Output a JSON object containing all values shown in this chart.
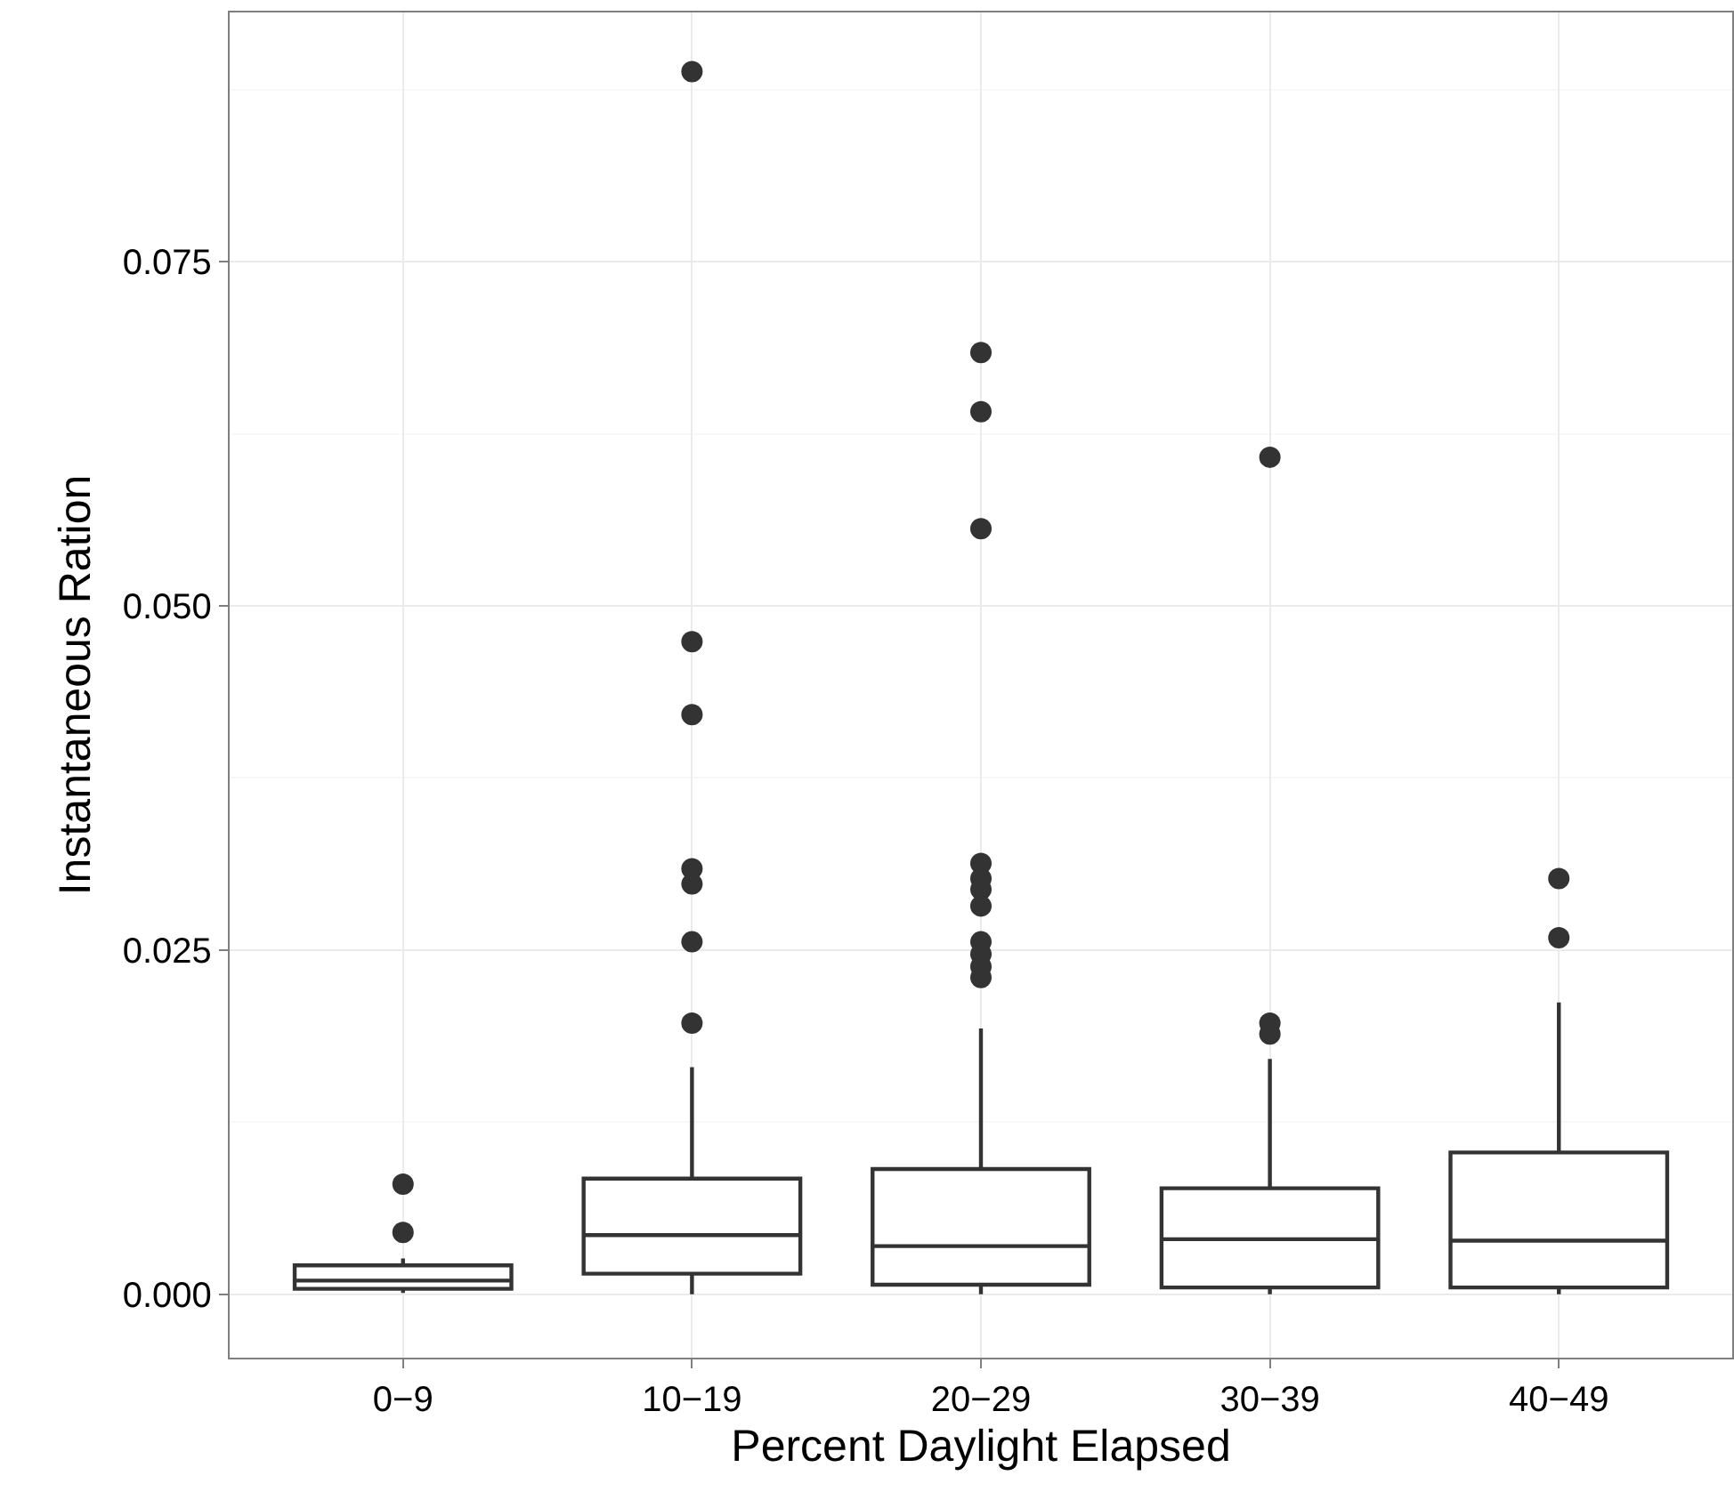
{
  "chart_data": {
    "type": "box",
    "xlabel": "Percent Daylight Elapsed",
    "ylabel": "Instantaneous Ration",
    "categories": [
      "0−9",
      "10−19",
      "20−29",
      "30−39",
      "40−49"
    ],
    "series": [
      {
        "color": "#333333",
        "boxes": [
          {
            "low": 0.0001,
            "q1": 0.0004,
            "median": 0.001,
            "q3": 0.0021,
            "high": 0.0026,
            "outliers": [
              0.008,
              0.0045
            ]
          },
          {
            "low": 0.0,
            "q1": 0.0015,
            "median": 0.0043,
            "q3": 0.0084,
            "high": 0.0165,
            "outliers": [
              0.0888,
              0.0474,
              0.0421,
              0.0309,
              0.0298,
              0.0256,
              0.0197
            ]
          },
          {
            "low": 0.0,
            "q1": 0.0007,
            "median": 0.0035,
            "q3": 0.0091,
            "high": 0.0193,
            "outliers": [
              0.0684,
              0.0641,
              0.0556,
              0.0313,
              0.0302,
              0.0294,
              0.0282,
              0.0256,
              0.0247,
              0.0238,
              0.023
            ]
          },
          {
            "low": 0.0,
            "q1": 0.0005,
            "median": 0.004,
            "q3": 0.0077,
            "high": 0.0171,
            "outliers": [
              0.0608,
              0.0197,
              0.0189
            ]
          },
          {
            "low": 0.0,
            "q1": 0.0005,
            "median": 0.0039,
            "q3": 0.0103,
            "high": 0.0212,
            "outliers": [
              0.0302,
              0.0259
            ]
          }
        ]
      }
    ],
    "ylim": [
      -0.0046,
      0.0931
    ],
    "yticks": [
      {
        "value": 0,
        "label": "0.000"
      },
      0.025,
      {
        "value": 0.05,
        "label": "0.050"
      },
      0.075
    ],
    "grid": true,
    "marker": "circle"
  }
}
